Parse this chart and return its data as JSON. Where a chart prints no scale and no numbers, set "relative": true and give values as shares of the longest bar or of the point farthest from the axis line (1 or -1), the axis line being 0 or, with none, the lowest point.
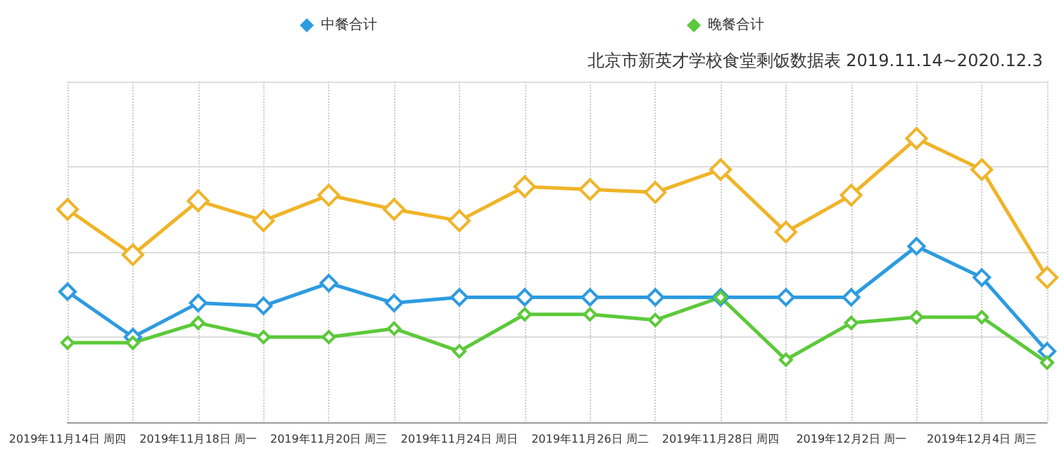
{
  "chart_data": {
    "type": "line",
    "title": "北京市新英才学校食堂剩饭数据表 2019.11.14~2020.12.3",
    "categories": [
      "2019年11月14日 周四",
      null,
      "2019年11月18日 周一",
      null,
      "2019年11月20日 周三",
      null,
      "2019年11月24日 周日",
      null,
      "2019年11月26日 周二",
      null,
      "2019年11月28日 周四",
      null,
      "2019年12月2日 周一",
      null,
      "2019年12月4日 周三",
      null
    ],
    "relative": true,
    "grid": true,
    "legend": "top",
    "marker": "diamond",
    "line_style": "solid",
    "series": [
      {
        "color": "#f0b429",
        "values": [
          0.75,
          0.59,
          0.78,
          0.71,
          0.8,
          0.75,
          0.71,
          0.83,
          0.82,
          0.81,
          0.89,
          0.67,
          0.8,
          1,
          0.89,
          0.51
        ]
      },
      {
        "name": "中餐合计",
        "color": "#2d9be0",
        "values": [
          0.46,
          0.3,
          0.42,
          0.41,
          0.49,
          0.42,
          0.44,
          0.44,
          0.44,
          0.44,
          0.44,
          0.44,
          0.44,
          0.62,
          0.51,
          0.25
        ]
      },
      {
        "name": "晚餐合计",
        "color": "#5cc93a",
        "values": [
          0.28,
          0.28,
          0.35,
          0.3,
          0.3,
          0.33,
          0.25,
          0.38,
          0.38,
          0.36,
          0.44,
          0.22,
          0.35,
          0.37,
          0.37,
          0.21
        ]
      }
    ]
  }
}
